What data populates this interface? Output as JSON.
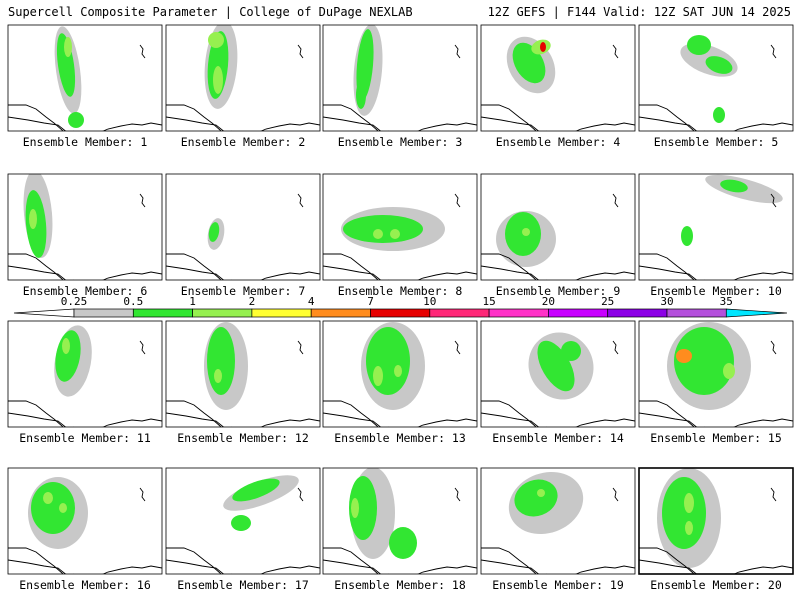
{
  "header": {
    "left": "Supercell Composite Parameter | College of DuPage NEXLAB",
    "right": "12Z GEFS | F144 Valid: 12Z SAT JUN 14 2025"
  },
  "colorbar": {
    "labels": [
      "0.25",
      "0.5",
      "1",
      "2",
      "4",
      "7",
      "10",
      "15",
      "20",
      "25",
      "30",
      "35"
    ],
    "colors": [
      "#ffffff",
      "#c8c8c8",
      "#32e632",
      "#96f050",
      "#ffff32",
      "#ff8c1e",
      "#e60000",
      "#ff2878",
      "#ff32c8",
      "#c800ff",
      "#8c00e6",
      "#b450dc",
      "#00e6ff"
    ]
  },
  "members": [
    {
      "label": "Ensemble Member: 1"
    },
    {
      "label": "Ensemble Member: 2"
    },
    {
      "label": "Ensemble Member: 3"
    },
    {
      "label": "Ensemble Member: 4"
    },
    {
      "label": "Ensemble Member: 5"
    },
    {
      "label": "Ensemble Member: 6"
    },
    {
      "label": "Ensemble Member: 7"
    },
    {
      "label": "Ensemble Member: 8"
    },
    {
      "label": "Ensemble Member: 9"
    },
    {
      "label": "Ensemble Member: 10"
    },
    {
      "label": "Ensemble Member: 11"
    },
    {
      "label": "Ensemble Member: 12"
    },
    {
      "label": "Ensemble Member: 13"
    },
    {
      "label": "Ensemble Member: 14"
    },
    {
      "label": "Ensemble Member: 15"
    },
    {
      "label": "Ensemble Member: 16"
    },
    {
      "label": "Ensemble Member: 17"
    },
    {
      "label": "Ensemble Member: 18"
    },
    {
      "label": "Ensemble Member: 19"
    },
    {
      "label": "Ensemble Member: 20",
      "selected": true
    }
  ]
}
